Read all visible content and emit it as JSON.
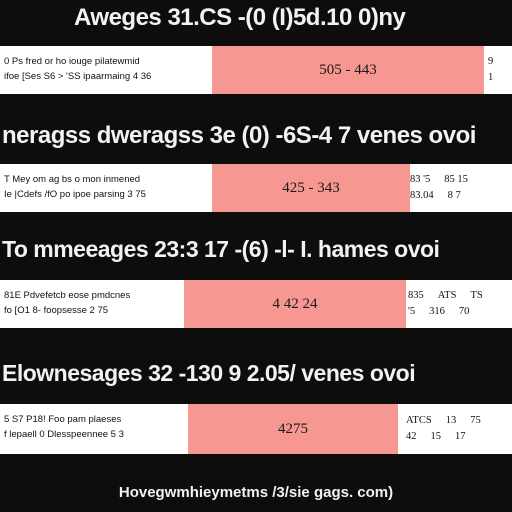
{
  "sections": [
    {
      "title": "Aweges 31.CS -(0 (I)5d.10 0)ny",
      "left_lines": [
        "0 Ps fred or ho iouge pilatewmid",
        "ifoe [Ses S6 > 'SS ipaarmaing 4 36"
      ],
      "mid": "505 - 443",
      "right_rows": [
        [
          "9"
        ],
        [
          "1"
        ]
      ]
    },
    {
      "title": "neragss dweragss 3e (0) -6S-4 7 venes ovoi",
      "left_lines": [
        "T Mey om ag bs o mon inmened",
        "Ie |Cdefs /fO po ipoe parsing 3 75"
      ],
      "mid": "425 - 343",
      "right_rows": [
        [
          "83 '5",
          "85 15"
        ],
        [
          "83.04",
          "8 7"
        ]
      ]
    },
    {
      "title": "To mmeeages 23:3 17 -(6) -l- I. hames ovoi",
      "left_lines": [
        "81E Pdvefetcb eose pmdcnes",
        "fo [O1 8- foopsesse 2 75"
      ],
      "mid": "4 42 24",
      "right_rows": [
        [
          "835",
          "ATS",
          "TS"
        ],
        [
          "'5",
          "316",
          "70"
        ]
      ]
    },
    {
      "title": "Elownesages 32 -130 9 2.05/ venes ovoi",
      "left_lines": [
        "5 S7 P18! Foo pam plaeses",
        "f lepaell 0 Dlesspeennee 5 3"
      ],
      "mid": "4275",
      "right_rows": [
        [
          "ATCS",
          "13",
          "75"
        ],
        [
          "42",
          "15",
          "17"
        ]
      ]
    }
  ],
  "footer": "Hovegwmhieymetms /3/sie gags. com)",
  "colors": {
    "background": "#0d0d0d",
    "panel": "#ffffff",
    "highlight": "#f69792",
    "title": "#f2f2f2"
  }
}
